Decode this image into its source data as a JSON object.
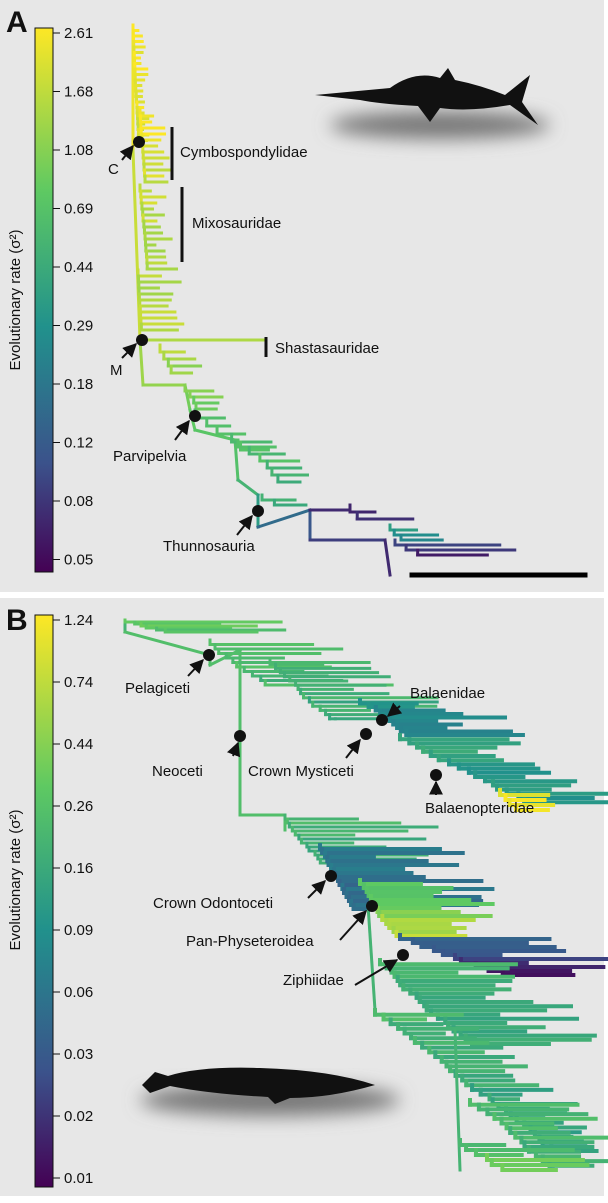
{
  "panels": [
    {
      "label": "A",
      "colorbar": {
        "title": "Evolutionary rate (σ²)",
        "ticks": [
          2.61,
          1.68,
          1.08,
          0.69,
          0.44,
          0.29,
          0.18,
          0.12,
          0.08,
          0.05
        ]
      },
      "annotations": [
        "Cymbospondylidae",
        "Mixosauridae",
        "Shastasauridae",
        "C",
        "M",
        "Parvipelvia",
        "Thunnosauria"
      ]
    },
    {
      "label": "B",
      "colorbar": {
        "title": "Evolutionary rate (σ²)",
        "ticks": [
          1.24,
          0.74,
          0.44,
          0.26,
          0.16,
          0.09,
          0.06,
          0.03,
          0.02,
          0.01
        ]
      },
      "annotations": [
        "Pelagiceti",
        "Neoceti",
        "Crown Mysticeti",
        "Balaenidae",
        "Balaenopteridae",
        "Crown Odontoceti",
        "Pan-Physeteroidea",
        "Ziphiidae"
      ]
    }
  ]
}
